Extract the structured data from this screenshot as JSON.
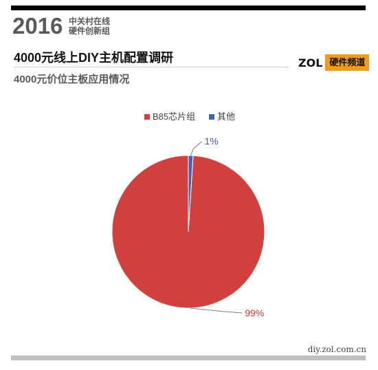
{
  "header": {
    "year": "2016",
    "brand_line1": "中关村在线",
    "brand_line2": "硬件创新组",
    "report_title": "4000元线上DIY主机配置调研",
    "site_word": "ZOL",
    "channel_label": "硬件频道"
  },
  "footer": {
    "url": "diy.zol.com.cn"
  },
  "colors": {
    "top_bar": "#000000",
    "bottom_bar": "#bfbfbf",
    "channel_badge": "#f39a1e"
  },
  "chart_data": {
    "type": "pie",
    "title": "4000元价位主板应用情况",
    "legend_position": "top",
    "slices": [
      {
        "label": "B85芯片组",
        "value": 99,
        "display": "99%",
        "color": "#d0413e",
        "label_color": "#c0392b"
      },
      {
        "label": "其他",
        "value": 1,
        "display": "1%",
        "color": "#3d63b5",
        "label_color": "#3d63b5"
      }
    ]
  }
}
